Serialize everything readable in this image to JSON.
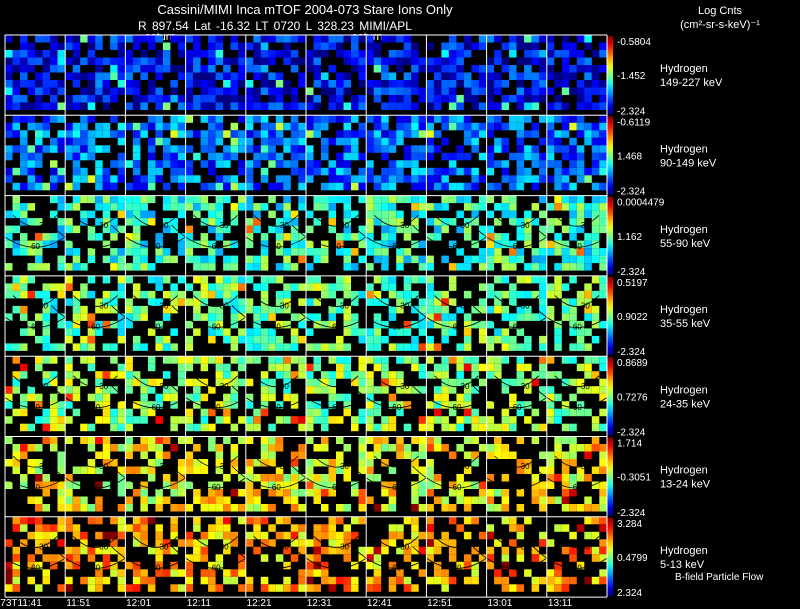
{
  "title": "Cassini/MIMI Inca mTOF  2004-073    Stare    Ions Only",
  "subtitle": "R        897.54 Lat -16.32 LT 0720 L          328.23  MIMI/APL",
  "legend_title_line1": "Log Cnts",
  "legend_title_line2": "(cm²-sr-s-keV)⁻¹",
  "saturn_labels": [
    "saturn",
    "saturn"
  ],
  "footer_note": "B-field Particle Flow",
  "colors": {
    "background": "#000000",
    "grid": "#ffffff",
    "text": "#ffffff"
  },
  "chart_data": {
    "type": "heatmap",
    "description_visible": "grid of energetic neutral atom images",
    "columns": 10,
    "time_labels": [
      "073T11:41",
      "11:51",
      "12:01",
      "12:11",
      "12:21",
      "12:31",
      "12:41",
      "12:51",
      "13:01",
      "13:11"
    ],
    "rows": [
      {
        "species": "Hydrogen",
        "energy": "149-227 keV",
        "cbar_max": "-0.5804",
        "cbar_mid": "-1.452",
        "cbar_min": "-2.324",
        "level": 0.12
      },
      {
        "species": "Hydrogen",
        "energy": "90-149 keV",
        "cbar_max": "-0.6119",
        "cbar_mid": "1.468",
        "cbar_min": "-2.324",
        "level": 0.22
      },
      {
        "species": "Hydrogen",
        "energy": "55-90 keV",
        "cbar_max": "0.0004479",
        "cbar_mid": "1.162",
        "cbar_min": "-2.324",
        "level": 0.42
      },
      {
        "species": "Hydrogen",
        "energy": "35-55 keV",
        "cbar_max": "0.5197",
        "cbar_mid": "0.9022",
        "cbar_min": "-2.324",
        "level": 0.47
      },
      {
        "species": "Hydrogen",
        "energy": "24-35 keV",
        "cbar_max": "0.8689",
        "cbar_mid": "0.7276",
        "cbar_min": "-2.324",
        "level": 0.52
      },
      {
        "species": "Hydrogen",
        "energy": "13-24 keV",
        "cbar_max": "1.714",
        "cbar_mid": "-0.3051",
        "cbar_min": "-2.324",
        "level": 0.62
      },
      {
        "species": "Hydrogen",
        "energy": "5-13 keV",
        "cbar_max": "3.284",
        "cbar_mid": "0.4799",
        "cbar_min": "2.324",
        "level": 0.7
      }
    ],
    "contour_labels": [
      "30",
      "60"
    ]
  }
}
